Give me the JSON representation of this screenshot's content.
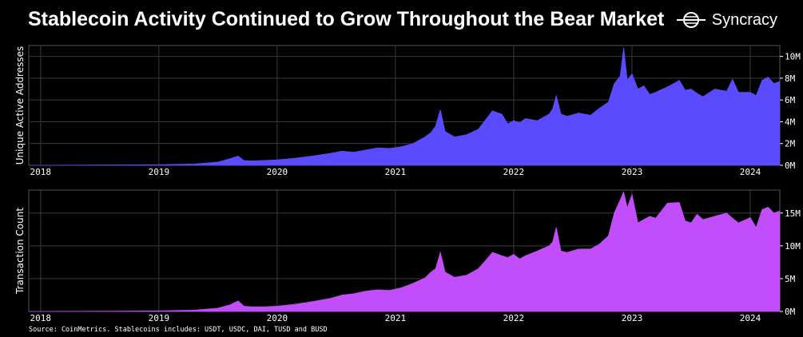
{
  "header": {
    "title": "Stablecoin Activity Continued to Grow Throughout the Bear Market",
    "brand": "Syncracy"
  },
  "footer": {
    "source": "Source: CoinMetrics. Stablecoins includes: USDT, USDC, DAI, TUSD and BUSD"
  },
  "colors": {
    "background": "#000000",
    "addresses_fill": "#5b4bff",
    "transactions_fill": "#c24dfa",
    "grid": "#3a3a3a"
  },
  "chart_data": [
    {
      "type": "area",
      "ylabel": "Unique Active Addresses",
      "xticks": [
        "2018",
        "2019",
        "2020",
        "2021",
        "2022",
        "2023",
        "2024"
      ],
      "yticks": [
        "0M",
        "2M",
        "4M",
        "6M",
        "8M",
        "10M"
      ],
      "ylim": [
        0,
        11000000
      ],
      "xlim": [
        2017.9,
        2024.25
      ],
      "grid": true,
      "series": [
        {
          "x": [
            2017.9,
            2018.5,
            2019.0,
            2019.3,
            2019.5,
            2019.6,
            2019.67,
            2019.72,
            2019.78,
            2019.9,
            2020.0,
            2020.15,
            2020.3,
            2020.45,
            2020.55,
            2020.65,
            2020.75,
            2020.85,
            2020.95,
            2021.05,
            2021.15,
            2021.25,
            2021.3,
            2021.34,
            2021.38,
            2021.42,
            2021.5,
            2021.6,
            2021.7,
            2021.75,
            2021.82,
            2021.9,
            2021.95,
            2022.0,
            2022.05,
            2022.1,
            2022.2,
            2022.3,
            2022.33,
            2022.36,
            2022.4,
            2022.45,
            2022.55,
            2022.65,
            2022.72,
            2022.8,
            2022.85,
            2022.9,
            2022.93,
            2022.96,
            2023.0,
            2023.05,
            2023.1,
            2023.15,
            2023.2,
            2023.3,
            2023.4,
            2023.45,
            2023.5,
            2023.55,
            2023.6,
            2023.7,
            2023.8,
            2023.85,
            2023.9,
            2024.0,
            2024.05,
            2024.1,
            2024.15,
            2024.2,
            2024.25
          ],
          "y": [
            0,
            20000,
            50000,
            120000,
            300000,
            600000,
            850000,
            450000,
            400000,
            450000,
            500000,
            650000,
            850000,
            1100000,
            1300000,
            1200000,
            1400000,
            1600000,
            1550000,
            1700000,
            2000000,
            2600000,
            3000000,
            3600000,
            5100000,
            3100000,
            2600000,
            2800000,
            3300000,
            4000000,
            5000000,
            4700000,
            3800000,
            4100000,
            3900000,
            4300000,
            4100000,
            4700000,
            5200000,
            6400000,
            4700000,
            4500000,
            4800000,
            4600000,
            5200000,
            5800000,
            7500000,
            8200000,
            10800000,
            7800000,
            8400000,
            7000000,
            7300000,
            6500000,
            6700000,
            7200000,
            7800000,
            6900000,
            7000000,
            6600000,
            6300000,
            7000000,
            6800000,
            7900000,
            6700000,
            6700000,
            6400000,
            7800000,
            8100000,
            7500000,
            7700000
          ]
        }
      ]
    },
    {
      "type": "area",
      "ylabel": "Transaction Count",
      "xticks": [
        "2018",
        "2019",
        "2020",
        "2021",
        "2022",
        "2023",
        "2024"
      ],
      "yticks": [
        "0M",
        "5M",
        "10M",
        "15M"
      ],
      "ylim": [
        0,
        18500000
      ],
      "xlim": [
        2017.9,
        2024.25
      ],
      "grid": true,
      "series": [
        {
          "x": [
            2017.9,
            2018.5,
            2019.0,
            2019.3,
            2019.5,
            2019.6,
            2019.67,
            2019.72,
            2019.78,
            2019.9,
            2020.0,
            2020.15,
            2020.3,
            2020.45,
            2020.55,
            2020.65,
            2020.75,
            2020.85,
            2020.95,
            2021.05,
            2021.15,
            2021.25,
            2021.3,
            2021.34,
            2021.38,
            2021.42,
            2021.5,
            2021.6,
            2021.7,
            2021.75,
            2021.82,
            2021.9,
            2021.95,
            2022.0,
            2022.05,
            2022.1,
            2022.2,
            2022.3,
            2022.33,
            2022.36,
            2022.4,
            2022.45,
            2022.55,
            2022.65,
            2022.72,
            2022.8,
            2022.85,
            2022.9,
            2022.93,
            2022.96,
            2023.0,
            2023.05,
            2023.1,
            2023.15,
            2023.2,
            2023.3,
            2023.4,
            2023.45,
            2023.5,
            2023.55,
            2023.6,
            2023.7,
            2023.8,
            2023.85,
            2023.9,
            2024.0,
            2024.05,
            2024.1,
            2024.15,
            2024.2,
            2024.25
          ],
          "y": [
            0,
            20000,
            80000,
            200000,
            500000,
            1000000,
            1600000,
            800000,
            700000,
            700000,
            800000,
            1100000,
            1500000,
            2000000,
            2500000,
            2700000,
            3100000,
            3300000,
            3200000,
            3600000,
            4300000,
            5100000,
            6000000,
            6500000,
            9000000,
            6000000,
            5200000,
            5500000,
            6500000,
            7500000,
            9000000,
            8500000,
            8200000,
            8700000,
            8000000,
            8500000,
            9200000,
            10000000,
            10600000,
            12800000,
            9200000,
            9000000,
            9500000,
            9500000,
            10200000,
            11500000,
            15000000,
            17000000,
            18200000,
            15800000,
            17800000,
            13500000,
            14000000,
            14500000,
            14200000,
            16500000,
            16600000,
            13800000,
            13500000,
            14800000,
            14000000,
            14500000,
            15000000,
            14200000,
            13500000,
            14300000,
            12800000,
            15500000,
            15900000,
            15000000,
            15300000
          ]
        }
      ]
    }
  ]
}
